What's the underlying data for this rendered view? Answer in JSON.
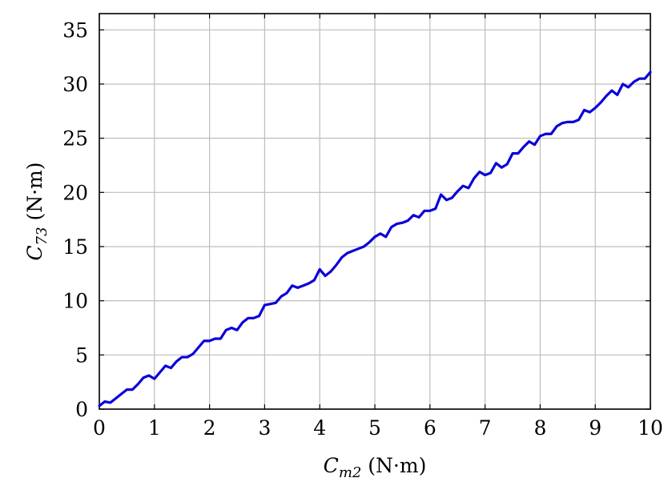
{
  "chart_data": {
    "type": "line",
    "title": "",
    "xlabel": {
      "main": "C",
      "sub": "m2",
      "unit": " (N·m)"
    },
    "ylabel": {
      "main": "C",
      "sub": "73",
      "unit": " (N·m)"
    },
    "xlim": [
      0,
      10
    ],
    "ylim": [
      0,
      36.5
    ],
    "xticks": [
      0,
      1,
      2,
      3,
      4,
      5,
      6,
      7,
      8,
      9,
      10
    ],
    "yticks": [
      0,
      5,
      10,
      15,
      20,
      25,
      30,
      35
    ],
    "grid": true,
    "colors": {
      "series": "#0a00d9",
      "grid": "#bdbdbd",
      "axis": "#000000"
    },
    "series": [
      {
        "x": [
          0,
          0.1,
          0.2,
          0.3,
          0.4,
          0.5,
          0.6,
          0.7,
          0.8,
          0.9,
          1.0,
          1.1,
          1.2,
          1.3,
          1.4,
          1.5,
          1.6,
          1.7,
          1.8,
          1.9,
          2.0,
          2.1,
          2.2,
          2.3,
          2.4,
          2.5,
          2.6,
          2.7,
          2.8,
          2.9,
          3.0,
          3.1,
          3.2,
          3.3,
          3.4,
          3.5,
          3.6,
          3.7,
          3.8,
          3.9,
          4.0,
          4.1,
          4.2,
          4.3,
          4.4,
          4.5,
          4.6,
          4.7,
          4.8,
          4.9,
          5.0,
          5.1,
          5.2,
          5.3,
          5.4,
          5.5,
          5.6,
          5.7,
          5.8,
          5.9,
          6.0,
          6.1,
          6.2,
          6.3,
          6.4,
          6.5,
          6.6,
          6.7,
          6.8,
          6.9,
          7.0,
          7.1,
          7.2,
          7.3,
          7.4,
          7.5,
          7.6,
          7.7,
          7.8,
          7.9,
          8.0,
          8.1,
          8.2,
          8.3,
          8.4,
          8.5,
          8.6,
          8.7,
          8.8,
          8.9,
          9.0,
          9.1,
          9.2,
          9.3,
          9.4,
          9.5,
          9.6,
          9.7,
          9.8,
          9.9,
          10.0
        ],
        "y": [
          0.3,
          0.7,
          0.6,
          1.0,
          1.4,
          1.8,
          1.8,
          2.3,
          2.9,
          3.1,
          2.8,
          3.4,
          4.0,
          3.8,
          4.4,
          4.8,
          4.8,
          5.1,
          5.7,
          6.3,
          6.3,
          6.5,
          6.5,
          7.3,
          7.5,
          7.3,
          8.0,
          8.4,
          8.4,
          8.6,
          9.6,
          9.7,
          9.8,
          10.4,
          10.7,
          11.4,
          11.2,
          11.4,
          11.6,
          11.9,
          12.9,
          12.3,
          12.7,
          13.3,
          14.0,
          14.4,
          14.6,
          14.8,
          15.0,
          15.4,
          15.9,
          16.2,
          15.9,
          16.8,
          17.1,
          17.2,
          17.4,
          17.9,
          17.7,
          18.3,
          18.3,
          18.5,
          19.8,
          19.3,
          19.5,
          20.1,
          20.6,
          20.4,
          21.3,
          21.9,
          21.6,
          21.8,
          22.7,
          22.3,
          22.6,
          23.6,
          23.6,
          24.2,
          24.7,
          24.4,
          25.2,
          25.4,
          25.4,
          26.1,
          26.4,
          26.5,
          26.5,
          26.7,
          27.6,
          27.4,
          27.8,
          28.3,
          28.9,
          29.4,
          29.0,
          30.0,
          29.7,
          30.2,
          30.5,
          30.5,
          31.1
        ]
      }
    ]
  }
}
